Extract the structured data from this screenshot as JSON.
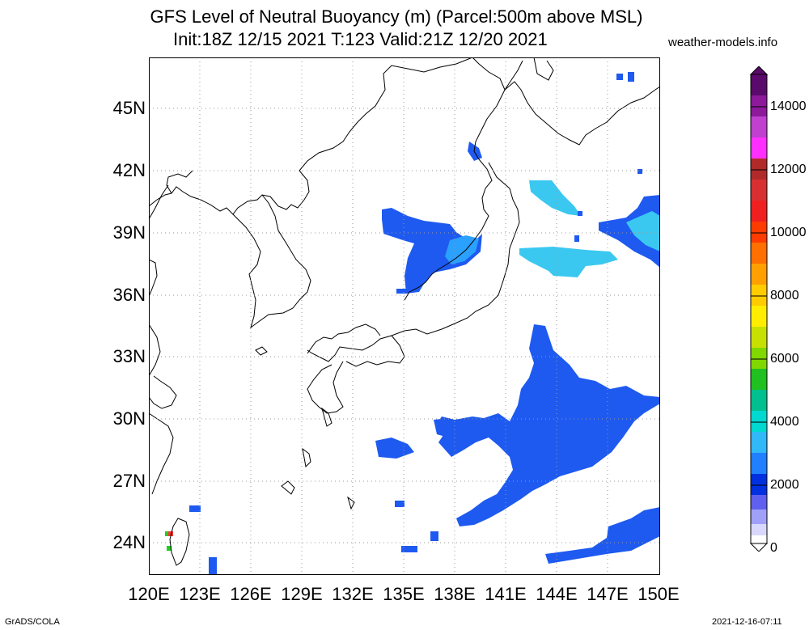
{
  "title": {
    "line1": "GFS Level of Neutral Buoyancy (m) (Parcel:500m above MSL)",
    "line2": "Init:18Z 12/15 2021 T:123 Valid:21Z 12/20 2021"
  },
  "site": "weather-models.info",
  "footer": {
    "left": "GrADS/COLA",
    "right": "2021-12-16-07:11"
  },
  "map": {
    "lat_labels": [
      "45N",
      "42N",
      "39N",
      "36N",
      "33N",
      "30N",
      "27N",
      "24N"
    ],
    "lon_labels": [
      "120E",
      "123E",
      "126E",
      "129E",
      "132E",
      "135E",
      "138E",
      "141E",
      "144E",
      "147E",
      "150E"
    ],
    "lat_range": [
      22.5,
      47.5
    ],
    "lon_range": [
      120,
      150
    ],
    "gridlines": true
  },
  "colorbar": {
    "labels": [
      "14000",
      "12000",
      "10000",
      "8000",
      "6000",
      "4000",
      "2000",
      "0"
    ],
    "min": 0,
    "max": 15000
  }
}
